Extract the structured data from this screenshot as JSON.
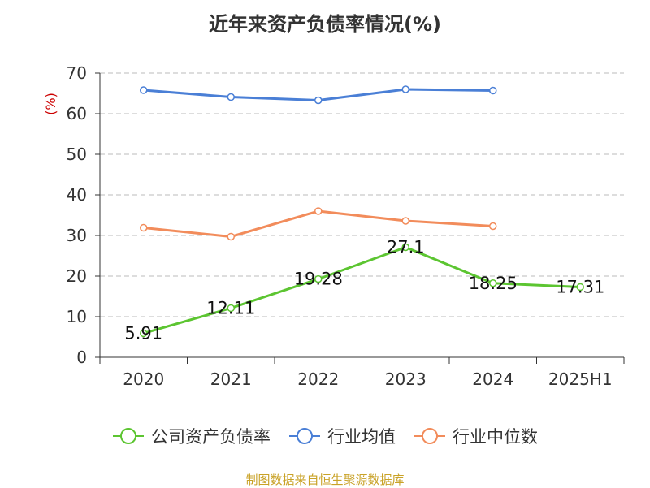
{
  "title": "近年来资产负债率情况(%)",
  "source": "制图数据来自恒生聚源数据库",
  "colors": {
    "company": "#5cc531",
    "industry_avg": "#4a7fd6",
    "industry_median": "#f28c5b",
    "unit_label": "#cc0000",
    "source": "#c9a227"
  },
  "chart_data": {
    "type": "line",
    "title": "近年来资产负债率情况(%)",
    "xlabel": "",
    "ylabel": "(%)",
    "ylim": [
      0,
      70
    ],
    "yticks": [
      0,
      10,
      20,
      30,
      40,
      50,
      60,
      70
    ],
    "grid": true,
    "legend_position": "bottom",
    "categories": [
      "2020",
      "2021",
      "2022",
      "2023",
      "2024",
      "2025H1"
    ],
    "series": [
      {
        "name": "公司资产负债率",
        "color": "#5cc531",
        "values": [
          5.91,
          12.11,
          19.28,
          27.1,
          18.25,
          17.31
        ],
        "labels": [
          "5.91",
          "12.11",
          "19.28",
          "27.1",
          "18.25",
          "17.31"
        ]
      },
      {
        "name": "行业均值",
        "color": "#4a7fd6",
        "values": [
          65.8,
          64.1,
          63.3,
          66.0,
          65.7,
          null
        ]
      },
      {
        "name": "行业中位数",
        "color": "#f28c5b",
        "values": [
          31.9,
          29.7,
          36.0,
          33.6,
          32.3,
          null
        ]
      }
    ]
  }
}
